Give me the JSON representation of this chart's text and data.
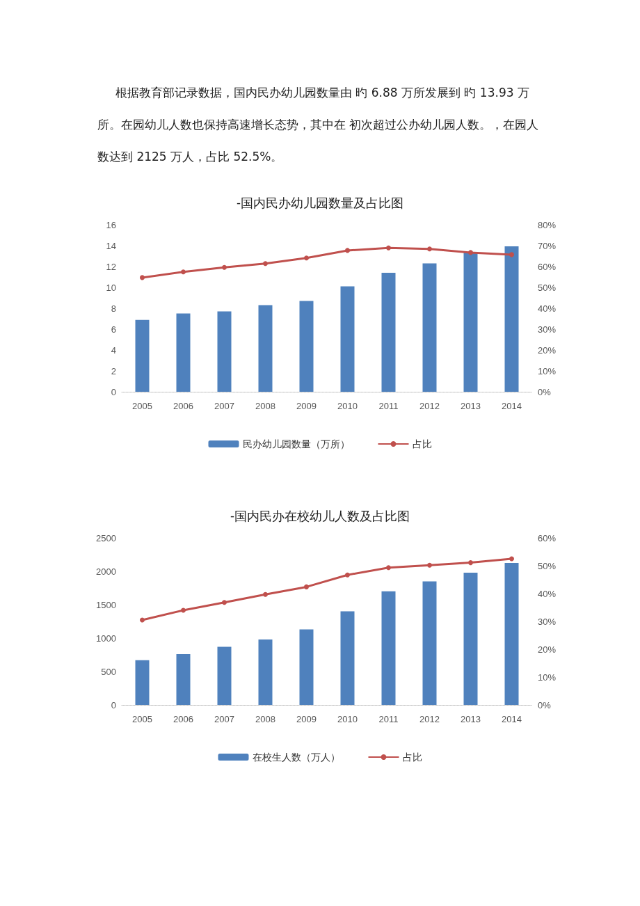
{
  "chart_data": [
    {
      "type": "bar",
      "title": "-国内民办幼儿园数量及占比图",
      "annotations": [
        "根据教育部记录数据，国内民办幼儿园数量由 旳 6.88 万所发展到 旳 13.93 万所。在园幼儿人数也保持高速增长态势，其中在 初次超过公办幼儿园人数。，在园人数达到 2125 万人，占比 52.5%。"
      ],
      "categories": [
        "2005",
        "2006",
        "2007",
        "2008",
        "2009",
        "2010",
        "2011",
        "2012",
        "2013",
        "2014"
      ],
      "series": [
        {
          "name": "民办幼儿园数量（万所）",
          "color": "#4f81bd",
          "values": [
            6.88,
            7.5,
            7.7,
            8.3,
            8.7,
            10.1,
            11.4,
            12.3,
            13.4,
            13.93
          ]
        },
        {
          "name": "占比",
          "type": "line",
          "axis": "y2",
          "color": "#c0504d",
          "values": [
            54.7,
            57.4,
            59.6,
            61.4,
            64.1,
            67.7,
            68.9,
            68.4,
            66.7,
            65.7
          ]
        }
      ],
      "ylim": [
        0,
        16
      ],
      "yticks": [
        0,
        2,
        4,
        6,
        8,
        10,
        12,
        14,
        16
      ],
      "y2lim": [
        0,
        80
      ],
      "y2ticks": [
        {
          "value": 0,
          "label": "0%"
        },
        {
          "value": 10,
          "label": "10%"
        },
        {
          "value": 20,
          "label": "20%"
        },
        {
          "value": 30,
          "label": "30%"
        },
        {
          "value": 40,
          "label": "40%"
        },
        {
          "value": 50,
          "label": "50%"
        },
        {
          "value": 60,
          "label": "60%"
        },
        {
          "value": 70,
          "label": "70%"
        },
        {
          "value": 80,
          "label": "80%"
        }
      ],
      "grid": false,
      "legend": "bottom",
      "marker": "circle"
    },
    {
      "type": "bar",
      "title": "-国内民办在校幼儿人数及占比图",
      "categories": [
        "2005",
        "2006",
        "2007",
        "2008",
        "2009",
        "2010",
        "2011",
        "2012",
        "2013",
        "2014"
      ],
      "series": [
        {
          "name": "在校生人数（万人）",
          "color": "#4f81bd",
          "values": [
            670,
            760,
            870,
            980,
            1130,
            1400,
            1700,
            1850,
            1980,
            2125
          ]
        },
        {
          "name": "占比",
          "type": "line",
          "axis": "y2",
          "color": "#c0504d",
          "values": [
            30.5,
            34.0,
            36.8,
            39.7,
            42.4,
            46.7,
            49.3,
            50.2,
            51.1,
            52.5
          ]
        }
      ],
      "ylim": [
        0,
        2500
      ],
      "yticks": [
        0,
        500,
        1000,
        1500,
        2000,
        2500
      ],
      "y2lim": [
        0,
        60
      ],
      "y2ticks": [
        {
          "value": 0,
          "label": "0%"
        },
        {
          "value": 10,
          "label": "10%"
        },
        {
          "value": 20,
          "label": "20%"
        },
        {
          "value": 30,
          "label": "30%"
        },
        {
          "value": 40,
          "label": "40%"
        },
        {
          "value": 50,
          "label": "50%"
        },
        {
          "value": 60,
          "label": "60%"
        }
      ],
      "grid": false,
      "legend": "bottom",
      "marker": "circle"
    }
  ]
}
